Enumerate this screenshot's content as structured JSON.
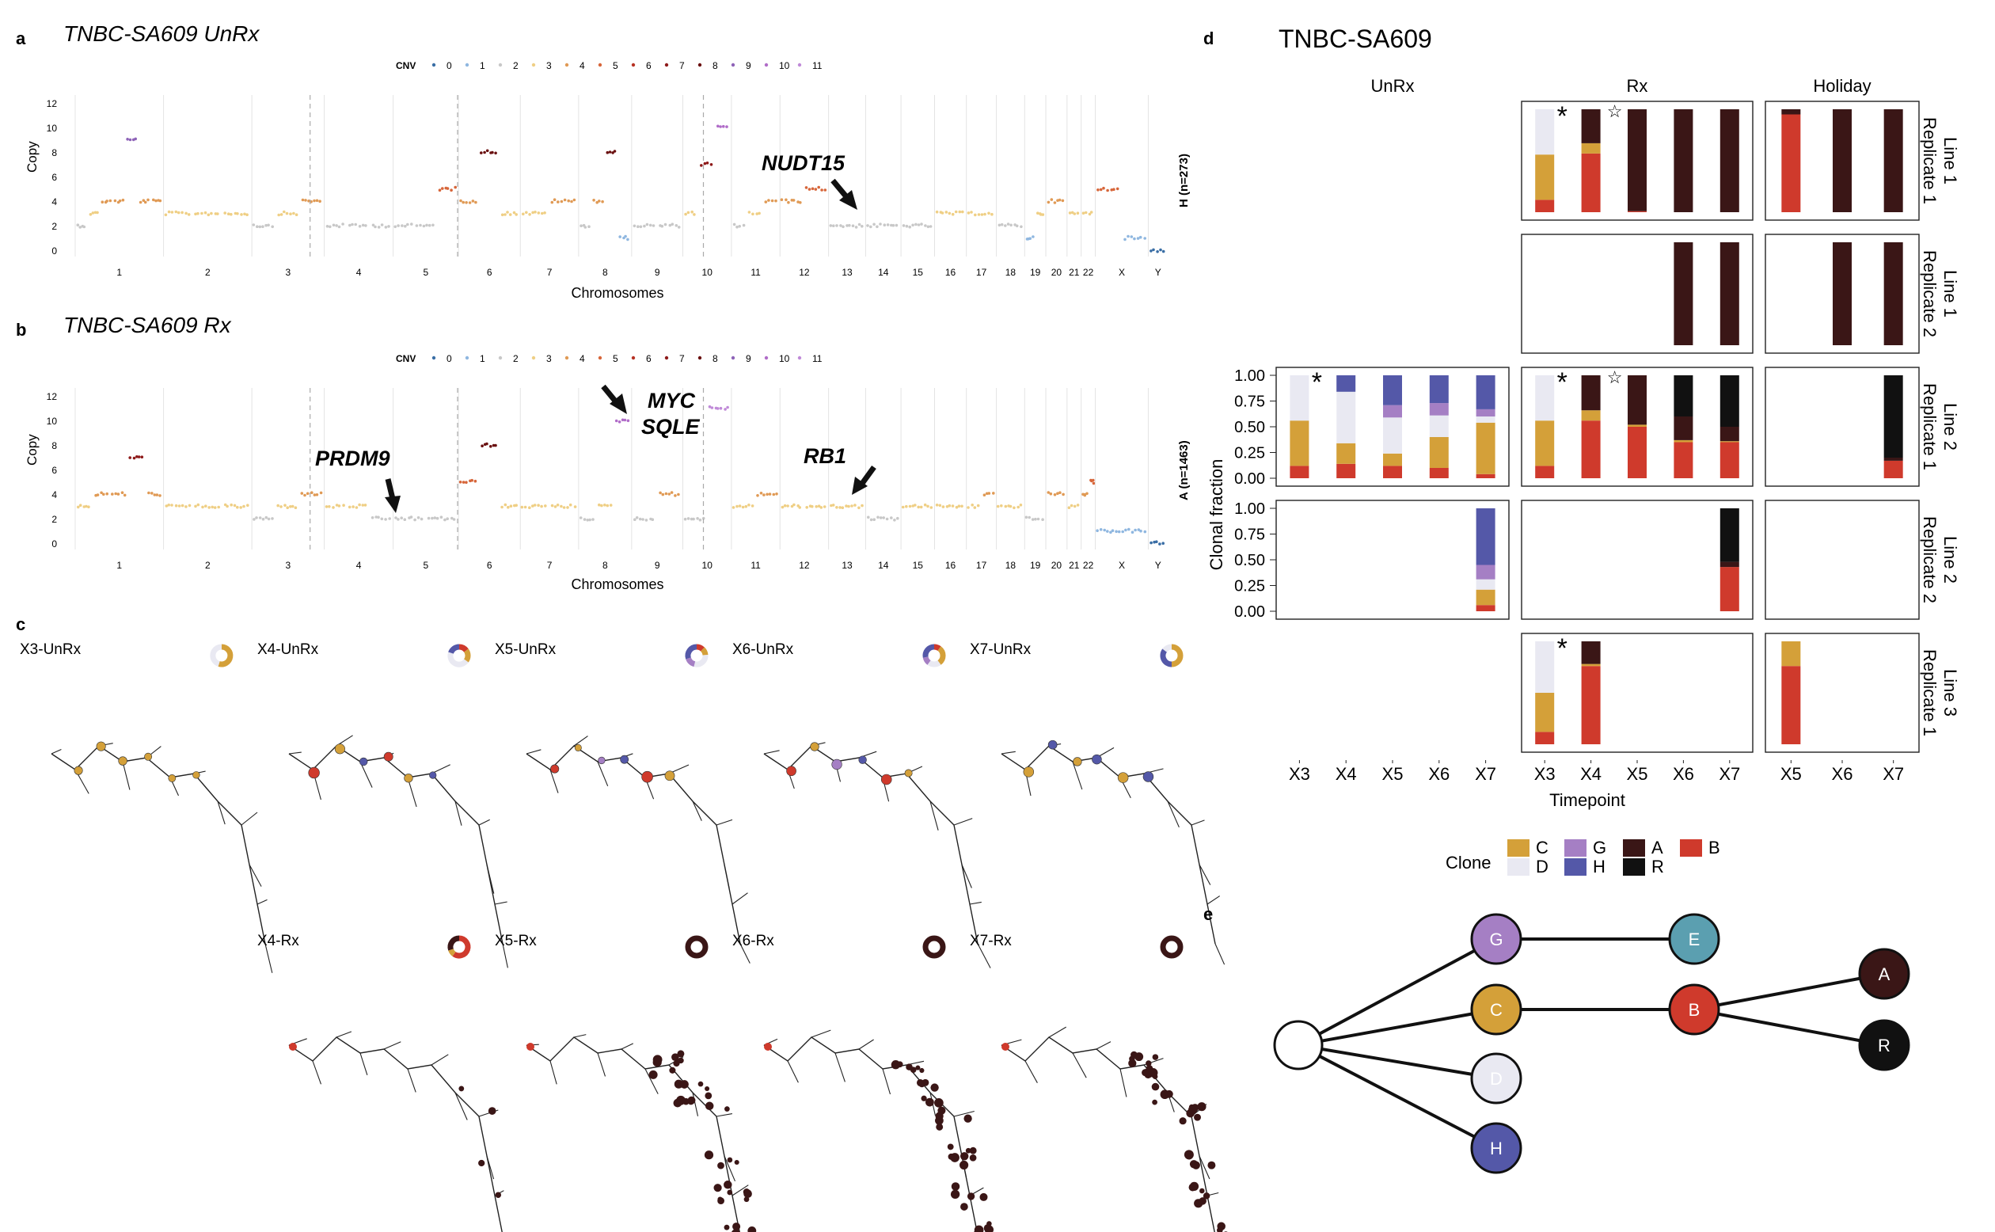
{
  "panels": {
    "a": {
      "letter": "a",
      "title": "TNBC-SA609 UnRx",
      "cnv_legend_label": "CNV",
      "cnv_states": [
        "0",
        "1",
        "2",
        "3",
        "4",
        "5",
        "6",
        "7",
        "8",
        "9",
        "10",
        "11"
      ],
      "ylabel": "Copy",
      "xlabel": "Chromosomes",
      "yticks": [
        "0",
        "2",
        "4",
        "6",
        "8",
        "10",
        "12"
      ],
      "chromosomes": [
        "1",
        "2",
        "3",
        "4",
        "5",
        "6",
        "7",
        "8",
        "9",
        "10",
        "11",
        "12",
        "13",
        "14",
        "15",
        "16",
        "17",
        "18",
        "19",
        "20",
        "21",
        "22",
        "X",
        "Y"
      ],
      "right_label": "H (n=273)",
      "gene_labels": [
        "NUDT15"
      ]
    },
    "b": {
      "letter": "b",
      "title": "TNBC-SA609 Rx",
      "cnv_legend_label": "CNV",
      "cnv_states": [
        "0",
        "1",
        "2",
        "3",
        "4",
        "5",
        "6",
        "7",
        "8",
        "9",
        "10",
        "11"
      ],
      "ylabel": "Copy",
      "xlabel": "Chromosomes",
      "yticks": [
        "0",
        "2",
        "4",
        "6",
        "8",
        "10",
        "12"
      ],
      "chromosomes": [
        "1",
        "2",
        "3",
        "4",
        "5",
        "6",
        "7",
        "8",
        "9",
        "10",
        "11",
        "12",
        "13",
        "14",
        "15",
        "16",
        "17",
        "18",
        "19",
        "20",
        "21",
        "22",
        "X",
        "Y"
      ],
      "right_label": "A (n=1463)",
      "gene_labels": [
        "PRDM9",
        "MYC",
        "SQLE",
        "RB1"
      ]
    },
    "c": {
      "letter": "c",
      "trees": [
        "X3-UnRx",
        "X4-UnRx",
        "X5-UnRx",
        "X6-UnRx",
        "X7-UnRx",
        "X4-Rx",
        "X5-Rx",
        "X6-Rx",
        "X7-Rx"
      ]
    },
    "d": {
      "letter": "d",
      "title": "TNBC-SA609",
      "col_headers": [
        "UnRx",
        "Rx",
        "Holiday"
      ],
      "row_headers": [
        "Line 1 Replicate 1",
        "Line 1 Replicate 2",
        "Line 2 Replicate 1",
        "Line 2 Replicate 2",
        "Line 3 Replicate 1"
      ],
      "row_lines": [
        "Line 1",
        "Line 1",
        "Line 2",
        "Line 2",
        "Line 3"
      ],
      "row_reps": [
        "Replicate 1",
        "Replicate 2",
        "Replicate 1",
        "Replicate 2",
        "Replicate 1"
      ],
      "ylabel": "Clonal fraction",
      "xlabel": "Timepoint",
      "yticks": [
        "0.00",
        "0.25",
        "0.50",
        "0.75",
        "1.00"
      ],
      "x_unrx": [
        "X3",
        "X4",
        "X5",
        "X6",
        "X7"
      ],
      "x_rx": [
        "X3",
        "X4",
        "X5",
        "X6",
        "X7"
      ],
      "x_holiday": [
        "X5",
        "X6",
        "X7"
      ],
      "legend_title": "Clone",
      "legend_items": [
        {
          "label": "C",
          "color": "#d4a039"
        },
        {
          "label": "D",
          "color": "#e9e9f2"
        },
        {
          "label": "G",
          "color": "#a57fc4"
        },
        {
          "label": "H",
          "color": "#5458a8"
        },
        {
          "label": "A",
          "color": "#3a1616"
        },
        {
          "label": "R",
          "color": "#111111"
        },
        {
          "label": "B",
          "color": "#cf3a2c"
        }
      ],
      "star_symbol": "*",
      "open_star_symbol": "☆"
    },
    "e": {
      "letter": "e",
      "nodes": [
        {
          "id": "root",
          "label": ""
        },
        {
          "id": "G",
          "label": "G"
        },
        {
          "id": "C",
          "label": "C"
        },
        {
          "id": "D",
          "label": "D"
        },
        {
          "id": "H",
          "label": "H"
        },
        {
          "id": "E",
          "label": "E"
        },
        {
          "id": "B",
          "label": "B"
        },
        {
          "id": "A",
          "label": "A"
        },
        {
          "id": "R",
          "label": "R"
        }
      ]
    }
  },
  "colors": {
    "C": "#d4a039",
    "D": "#e9e9f2",
    "G": "#a57fc4",
    "H": "#5458a8",
    "A": "#3a1616",
    "R": "#111111",
    "B": "#cf3a2c",
    "E": "#5b9fb0",
    "cnv": [
      "#3a6ea5",
      "#8fb7e0",
      "#c8c8c8",
      "#efcf85",
      "#e09a55",
      "#d7663a",
      "#b73224",
      "#8e1a1a",
      "#6a1010",
      "#8e63b8",
      "#b06cc8",
      "#c08ad8"
    ]
  },
  "chart_data": [
    {
      "type": "bar",
      "title": "TNBC-SA609",
      "ylabel": "Clonal fraction",
      "xlabel": "Timepoint",
      "ylim": [
        0,
        1
      ],
      "stack_order_bottom_to_top": [
        "B",
        "C",
        "D",
        "G",
        "H",
        "A",
        "R"
      ],
      "facets": [
        {
          "row": "Line 1 Replicate 1",
          "col": "Rx",
          "bars": [
            {
              "x": "X3",
              "B": 0.12,
              "C": 0.44,
              "D": 0.44
            },
            {
              "x": "X4",
              "B": 0.57,
              "C": 0.1,
              "A": 0.33
            },
            {
              "x": "X5",
              "B": 0.01,
              "A": 0.99
            },
            {
              "x": "X6",
              "A": 1.0
            },
            {
              "x": "X7",
              "A": 1.0
            }
          ]
        },
        {
          "row": "Line 1 Replicate 1",
          "col": "Holiday",
          "bars": [
            {
              "x": "X5",
              "B": 0.95,
              "A": 0.05
            },
            {
              "x": "X6",
              "A": 1.0
            },
            {
              "x": "X7",
              "A": 1.0
            }
          ]
        },
        {
          "row": "Line 1 Replicate 2",
          "col": "Rx",
          "bars": [
            {
              "x": "X6",
              "A": 1.0
            },
            {
              "x": "X7",
              "A": 1.0
            }
          ]
        },
        {
          "row": "Line 1 Replicate 2",
          "col": "Holiday",
          "bars": [
            {
              "x": "X6",
              "A": 1.0
            },
            {
              "x": "X7",
              "A": 1.0
            }
          ]
        },
        {
          "row": "Line 2 Replicate 1",
          "col": "UnRx",
          "bars": [
            {
              "x": "X3",
              "B": 0.12,
              "C": 0.44,
              "D": 0.44
            },
            {
              "x": "X4",
              "B": 0.14,
              "C": 0.2,
              "D": 0.5,
              "H": 0.16
            },
            {
              "x": "X5",
              "B": 0.12,
              "C": 0.12,
              "D": 0.35,
              "G": 0.12,
              "H": 0.29
            },
            {
              "x": "X6",
              "B": 0.1,
              "C": 0.3,
              "D": 0.21,
              "G": 0.12,
              "H": 0.27
            },
            {
              "x": "X7",
              "B": 0.04,
              "C": 0.5,
              "D": 0.06,
              "G": 0.07,
              "H": 0.33
            }
          ]
        },
        {
          "row": "Line 2 Replicate 1",
          "col": "Rx",
          "bars": [
            {
              "x": "X3",
              "B": 0.12,
              "C": 0.44,
              "D": 0.44
            },
            {
              "x": "X4",
              "B": 0.56,
              "C": 0.1,
              "A": 0.34
            },
            {
              "x": "X5",
              "B": 0.5,
              "C": 0.02,
              "A": 0.48
            },
            {
              "x": "X6",
              "B": 0.35,
              "C": 0.02,
              "A": 0.23,
              "R": 0.4
            },
            {
              "x": "X7",
              "B": 0.35,
              "C": 0.01,
              "A": 0.14,
              "R": 0.5
            }
          ]
        },
        {
          "row": "Line 2 Replicate 1",
          "col": "Holiday",
          "bars": [
            {
              "x": "X7",
              "B": 0.17,
              "A": 0.03,
              "R": 0.8
            }
          ]
        },
        {
          "row": "Line 2 Replicate 2",
          "col": "UnRx",
          "bars": [
            {
              "x": "X7",
              "B": 0.06,
              "C": 0.15,
              "D": 0.1,
              "G": 0.14,
              "H": 0.55
            }
          ]
        },
        {
          "row": "Line 2 Replicate 2",
          "col": "Rx",
          "bars": [
            {
              "x": "X7",
              "B": 0.43,
              "A": 0.05,
              "R": 0.52
            }
          ]
        },
        {
          "row": "Line 3 Replicate 1",
          "col": "Rx",
          "bars": [
            {
              "x": "X3",
              "B": 0.12,
              "C": 0.38,
              "D": 0.5
            },
            {
              "x": "X4",
              "B": 0.76,
              "C": 0.02,
              "A": 0.22
            }
          ]
        },
        {
          "row": "Line 3 Replicate 1",
          "col": "Holiday",
          "bars": [
            {
              "x": "X5",
              "B": 0.76,
              "C": 0.24
            }
          ]
        }
      ]
    },
    {
      "type": "scatter",
      "title": "TNBC-SA609 UnRx",
      "ylabel": "Copy",
      "xlabel": "Chromosomes",
      "ylim": [
        0,
        12
      ],
      "chromosome_segments": [
        {
          "chr": "1",
          "copy": [
            2,
            3,
            4,
            4,
            9,
            4,
            4
          ]
        },
        {
          "chr": "2",
          "copy": [
            3,
            3,
            3
          ]
        },
        {
          "chr": "3",
          "copy": [
            2,
            3,
            4
          ]
        },
        {
          "chr": "4",
          "copy": [
            2,
            2,
            2
          ]
        },
        {
          "chr": "5",
          "copy": [
            2,
            2,
            5
          ]
        },
        {
          "chr": "6",
          "copy": [
            4,
            8,
            3
          ]
        },
        {
          "chr": "7",
          "copy": [
            3,
            4
          ]
        },
        {
          "chr": "8",
          "copy": [
            2,
            4,
            8,
            1
          ]
        },
        {
          "chr": "9",
          "copy": [
            2,
            2
          ]
        },
        {
          "chr": "10",
          "copy": [
            3,
            7,
            10
          ]
        },
        {
          "chr": "11",
          "copy": [
            2,
            3,
            4
          ]
        },
        {
          "chr": "12",
          "copy": [
            4,
            5
          ]
        },
        {
          "chr": "13",
          "copy": [
            2
          ]
        },
        {
          "chr": "14",
          "copy": [
            2
          ]
        },
        {
          "chr": "15",
          "copy": [
            2
          ]
        },
        {
          "chr": "16",
          "copy": [
            3
          ]
        },
        {
          "chr": "17",
          "copy": [
            3
          ]
        },
        {
          "chr": "18",
          "copy": [
            2
          ]
        },
        {
          "chr": "19",
          "copy": [
            1,
            3
          ]
        },
        {
          "chr": "20",
          "copy": [
            4
          ]
        },
        {
          "chr": "21",
          "copy": [
            3
          ]
        },
        {
          "chr": "22",
          "copy": [
            3
          ]
        },
        {
          "chr": "X",
          "copy": [
            5,
            1
          ]
        },
        {
          "chr": "Y",
          "copy": [
            0
          ]
        }
      ]
    },
    {
      "type": "scatter",
      "title": "TNBC-SA609 Rx",
      "ylabel": "Copy",
      "xlabel": "Chromosomes",
      "ylim": [
        0,
        12
      ],
      "chromosome_segments": [
        {
          "chr": "1",
          "copy": [
            3,
            4,
            4,
            7,
            4
          ]
        },
        {
          "chr": "2",
          "copy": [
            3,
            3,
            3
          ]
        },
        {
          "chr": "3",
          "copy": [
            2,
            3,
            4
          ]
        },
        {
          "chr": "4",
          "copy": [
            3,
            3,
            2
          ]
        },
        {
          "chr": "5",
          "copy": [
            2,
            2
          ]
        },
        {
          "chr": "6",
          "copy": [
            5,
            8,
            3
          ]
        },
        {
          "chr": "7",
          "copy": [
            3,
            3
          ]
        },
        {
          "chr": "8",
          "copy": [
            2,
            3,
            10
          ]
        },
        {
          "chr": "9",
          "copy": [
            2,
            4
          ]
        },
        {
          "chr": "10",
          "copy": [
            2,
            11
          ]
        },
        {
          "chr": "11",
          "copy": [
            3,
            4
          ]
        },
        {
          "chr": "12",
          "copy": [
            3,
            3
          ]
        },
        {
          "chr": "13",
          "copy": [
            3
          ]
        },
        {
          "chr": "14",
          "copy": [
            2
          ]
        },
        {
          "chr": "15",
          "copy": [
            3
          ]
        },
        {
          "chr": "16",
          "copy": [
            3
          ]
        },
        {
          "chr": "17",
          "copy": [
            3,
            4
          ]
        },
        {
          "chr": "18",
          "copy": [
            3
          ]
        },
        {
          "chr": "19",
          "copy": [
            2
          ]
        },
        {
          "chr": "20",
          "copy": [
            4
          ]
        },
        {
          "chr": "21",
          "copy": [
            3
          ]
        },
        {
          "chr": "22",
          "copy": [
            4,
            5
          ]
        },
        {
          "chr": "X",
          "copy": [
            1
          ]
        },
        {
          "chr": "Y",
          "copy": [
            0
          ]
        }
      ]
    }
  ]
}
